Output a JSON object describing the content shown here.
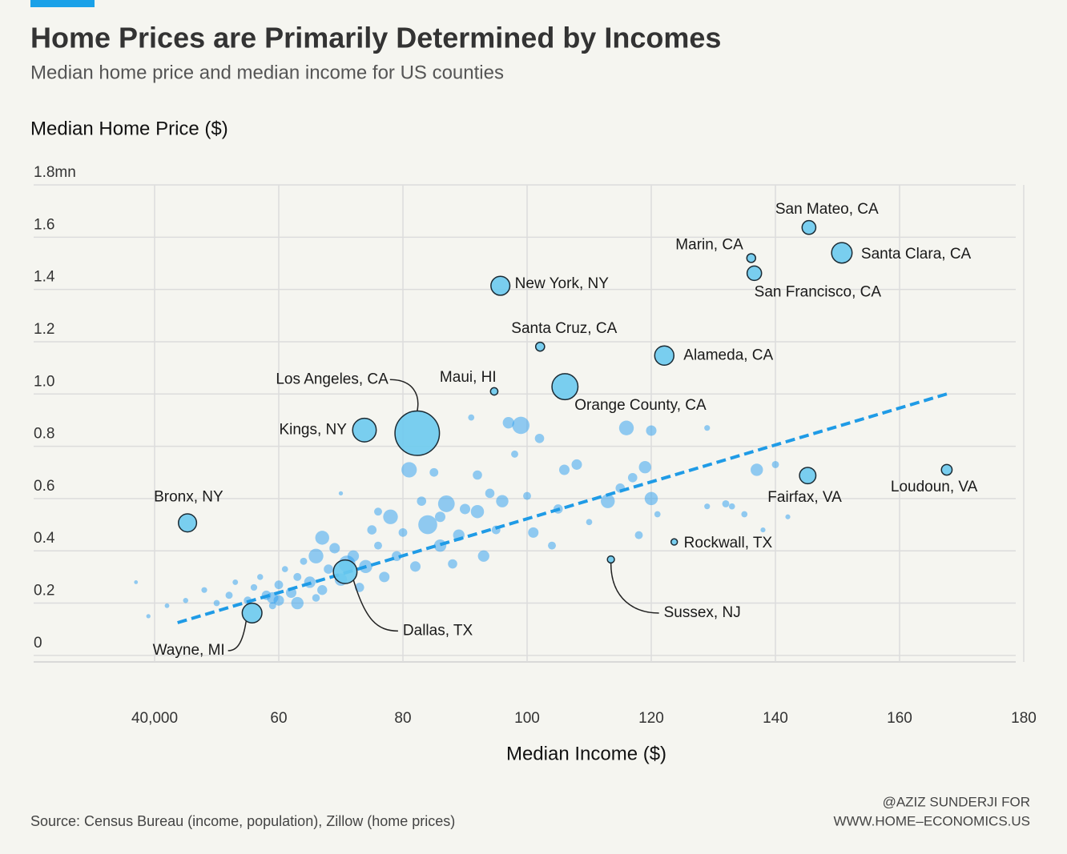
{
  "chart_data": {
    "type": "scatter",
    "title": "Home Prices are Primarily Determined by Incomes",
    "subtitle": "Median home price and median income for US counties",
    "y_label": "Median Home Price ($)",
    "x_label": "Median Income ($)",
    "source": "Source: Census Bureau (income, population), Zillow (home prices)",
    "credit": [
      "@AZIZ SUNDERJI FOR",
      "WWW.HOME–ECONOMICS.US"
    ],
    "xlim": [
      20000,
      180000
    ],
    "ylim": [
      -25000,
      1800000
    ],
    "xticks": [
      {
        "value": 40000,
        "label": "40,000"
      },
      {
        "value": 60000,
        "label": "60"
      },
      {
        "value": 80000,
        "label": "80"
      },
      {
        "value": 100000,
        "label": "100"
      },
      {
        "value": 120000,
        "label": "120"
      },
      {
        "value": 140000,
        "label": "140"
      },
      {
        "value": 160000,
        "label": "160"
      },
      {
        "value": 180000,
        "label": "180"
      }
    ],
    "yticks": [
      0,
      {
        "value": 200000,
        "label": "0.2"
      },
      {
        "value": 400000,
        "label": "0.4"
      },
      {
        "value": 600000,
        "label": "0.6"
      },
      {
        "value": 800000,
        "label": "0.8"
      },
      {
        "value": 1000000,
        "label": "1.0"
      },
      {
        "value": 1200000,
        "label": "1.2"
      },
      {
        "value": 1400000,
        "label": "1.4"
      },
      {
        "value": 1600000,
        "label": "1.6"
      },
      {
        "value": 1800000,
        "label": "1.8mn"
      }
    ],
    "grid": true,
    "color": "#2a9df0",
    "labeled_color": "#6ccaee",
    "trend": {
      "color": "#1f9be6",
      "x": [
        43700,
        167600
      ],
      "y": [
        125000,
        1000000
      ]
    },
    "labeled": [
      {
        "label": "San Mateo, CA",
        "x": 145400,
        "y": 1637000,
        "size": 770000
      },
      {
        "label": "Marin, CA",
        "x": 136100,
        "y": 1520000,
        "size": 260000
      },
      {
        "label": "Santa Clara, CA",
        "x": 150700,
        "y": 1540000,
        "size": 1900000
      },
      {
        "label": "San Francisco, CA",
        "x": 136600,
        "y": 1462000,
        "size": 870000
      },
      {
        "label": "New York, NY",
        "x": 95700,
        "y": 1414000,
        "size": 1600000
      },
      {
        "label": "Santa Cruz, CA",
        "x": 102100,
        "y": 1181000,
        "size": 270000
      },
      {
        "label": "Alameda, CA",
        "x": 122100,
        "y": 1147000,
        "size": 1650000
      },
      {
        "label": "Maui, HI",
        "x": 94700,
        "y": 1010000,
        "size": 165000
      },
      {
        "label": "Orange County, CA",
        "x": 106100,
        "y": 1028000,
        "size": 3200000
      },
      {
        "label": "Los Angeles, CA",
        "x": 82300,
        "y": 850000,
        "size": 10000000
      },
      {
        "label": "Kings, NY",
        "x": 73800,
        "y": 862000,
        "size": 2600000
      },
      {
        "label": "Bronx, NY",
        "x": 45300,
        "y": 507000,
        "size": 1450000
      },
      {
        "label": "Fairfax, VA",
        "x": 145200,
        "y": 688000,
        "size": 1150000
      },
      {
        "label": "Loudoun, VA",
        "x": 167600,
        "y": 710000,
        "size": 420000
      },
      {
        "label": "Rockwall, TX",
        "x": 123700,
        "y": 434000,
        "size": 107000
      },
      {
        "label": "Sussex, NJ",
        "x": 113500,
        "y": 367000,
        "size": 145000
      },
      {
        "label": "Dallas, TX",
        "x": 70700,
        "y": 320000,
        "size": 2600000
      },
      {
        "label": "Wayne, MI",
        "x": 55700,
        "y": 162000,
        "size": 1750000
      }
    ],
    "cloud": [
      [
        37000,
        280000,
        20000
      ],
      [
        39000,
        150000,
        30000
      ],
      [
        42000,
        190000,
        40000
      ],
      [
        45000,
        210000,
        60000
      ],
      [
        48000,
        250000,
        80000
      ],
      [
        50000,
        200000,
        100000
      ],
      [
        52000,
        230000,
        150000
      ],
      [
        53000,
        280000,
        70000
      ],
      [
        55000,
        210000,
        200000
      ],
      [
        56000,
        260000,
        120000
      ],
      [
        57000,
        300000,
        90000
      ],
      [
        58000,
        230000,
        300000
      ],
      [
        59000,
        190000,
        150000
      ],
      [
        60000,
        270000,
        250000
      ],
      [
        61000,
        330000,
        100000
      ],
      [
        62000,
        240000,
        400000
      ],
      [
        63000,
        300000,
        200000
      ],
      [
        64000,
        360000,
        150000
      ],
      [
        65000,
        280000,
        500000
      ],
      [
        66000,
        220000,
        180000
      ],
      [
        67000,
        450000,
        800000
      ],
      [
        68000,
        330000,
        300000
      ],
      [
        69000,
        410000,
        400000
      ],
      [
        70000,
        290000,
        600000
      ],
      [
        72000,
        380000,
        500000
      ],
      [
        73000,
        260000,
        300000
      ],
      [
        74000,
        340000,
        700000
      ],
      [
        75000,
        480000,
        300000
      ],
      [
        76000,
        420000,
        200000
      ],
      [
        77000,
        300000,
        400000
      ],
      [
        78000,
        530000,
        900000
      ],
      [
        79000,
        380000,
        350000
      ],
      [
        80000,
        470000,
        250000
      ],
      [
        81000,
        710000,
        1000000
      ],
      [
        82000,
        340000,
        400000
      ],
      [
        83000,
        590000,
        300000
      ],
      [
        84000,
        500000,
        1600000
      ],
      [
        85000,
        700000,
        250000
      ],
      [
        86000,
        420000,
        600000
      ],
      [
        87000,
        580000,
        1200000
      ],
      [
        88000,
        350000,
        300000
      ],
      [
        89000,
        460000,
        500000
      ],
      [
        90000,
        560000,
        400000
      ],
      [
        91000,
        910000,
        100000
      ],
      [
        92000,
        550000,
        700000
      ],
      [
        93000,
        380000,
        500000
      ],
      [
        94000,
        620000,
        300000
      ],
      [
        95000,
        480000,
        250000
      ],
      [
        96000,
        590000,
        600000
      ],
      [
        97000,
        890000,
        500000
      ],
      [
        98000,
        770000,
        150000
      ],
      [
        99000,
        880000,
        1300000
      ],
      [
        100000,
        610000,
        200000
      ],
      [
        101000,
        470000,
        400000
      ],
      [
        102000,
        830000,
        300000
      ],
      [
        104000,
        420000,
        200000
      ],
      [
        105000,
        560000,
        300000
      ],
      [
        106000,
        710000,
        400000
      ],
      [
        108000,
        730000,
        400000
      ],
      [
        110000,
        510000,
        100000
      ],
      [
        113000,
        590000,
        800000
      ],
      [
        115000,
        640000,
        300000
      ],
      [
        116000,
        870000,
        900000
      ],
      [
        117000,
        680000,
        300000
      ],
      [
        118000,
        460000,
        200000
      ],
      [
        119000,
        720000,
        600000
      ],
      [
        120000,
        600000,
        700000
      ],
      [
        120000,
        860000,
        400000
      ],
      [
        121000,
        540000,
        100000
      ],
      [
        129000,
        870000,
        80000
      ],
      [
        129000,
        570000,
        80000
      ],
      [
        132000,
        580000,
        150000
      ],
      [
        133000,
        570000,
        100000
      ],
      [
        135000,
        540000,
        100000
      ],
      [
        137000,
        710000,
        600000
      ],
      [
        140000,
        730000,
        150000
      ],
      [
        142000,
        530000,
        50000
      ],
      [
        138000,
        480000,
        50000
      ],
      [
        92000,
        690000,
        300000
      ],
      [
        86000,
        530000,
        400000
      ],
      [
        76000,
        550000,
        200000
      ],
      [
        70000,
        620000,
        30000
      ],
      [
        66000,
        380000,
        900000
      ],
      [
        71000,
        350000,
        1200000
      ],
      [
        63000,
        200000,
        600000
      ],
      [
        59000,
        220000,
        500000
      ],
      [
        60000,
        210000,
        400000
      ],
      [
        67000,
        250000,
        350000
      ]
    ]
  }
}
